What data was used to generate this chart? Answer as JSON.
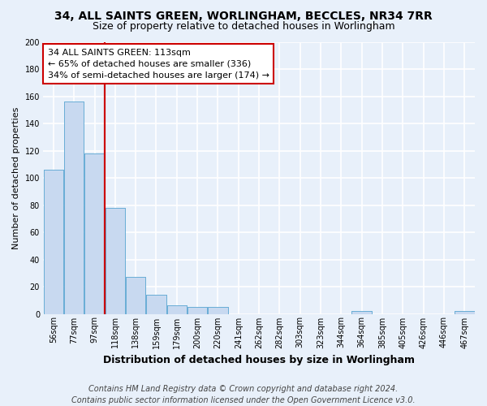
{
  "title": "34, ALL SAINTS GREEN, WORLINGHAM, BECCLES, NR34 7RR",
  "subtitle": "Size of property relative to detached houses in Worlingham",
  "xlabel": "Distribution of detached houses by size in Worlingham",
  "ylabel": "Number of detached properties",
  "categories": [
    "56sqm",
    "77sqm",
    "97sqm",
    "118sqm",
    "138sqm",
    "159sqm",
    "179sqm",
    "200sqm",
    "220sqm",
    "241sqm",
    "262sqm",
    "282sqm",
    "303sqm",
    "323sqm",
    "344sqm",
    "364sqm",
    "385sqm",
    "405sqm",
    "426sqm",
    "446sqm",
    "467sqm"
  ],
  "values": [
    106,
    156,
    118,
    78,
    27,
    14,
    6,
    5,
    5,
    0,
    0,
    0,
    0,
    0,
    0,
    2,
    0,
    0,
    0,
    0,
    2
  ],
  "bar_color": "#c8d9f0",
  "bar_edge_color": "#6aaed6",
  "background_color": "#e8f0fa",
  "plot_bg_color": "#e8f0fa",
  "grid_color": "#ffffff",
  "vline_x": 2.5,
  "vline_color": "#cc0000",
  "annotation_text": "34 ALL SAINTS GREEN: 113sqm\n← 65% of detached houses are smaller (336)\n34% of semi-detached houses are larger (174) →",
  "annotation_box_facecolor": "#ffffff",
  "annotation_box_edgecolor": "#cc0000",
  "footnote": "Contains HM Land Registry data © Crown copyright and database right 2024.\nContains public sector information licensed under the Open Government Licence v3.0.",
  "ylim": [
    0,
    200
  ],
  "yticks": [
    0,
    20,
    40,
    60,
    80,
    100,
    120,
    140,
    160,
    180,
    200
  ],
  "title_fontsize": 10,
  "subtitle_fontsize": 9,
  "ylabel_fontsize": 8,
  "xlabel_fontsize": 9,
  "tick_fontsize": 7,
  "footnote_fontsize": 7,
  "annotation_fontsize": 8
}
